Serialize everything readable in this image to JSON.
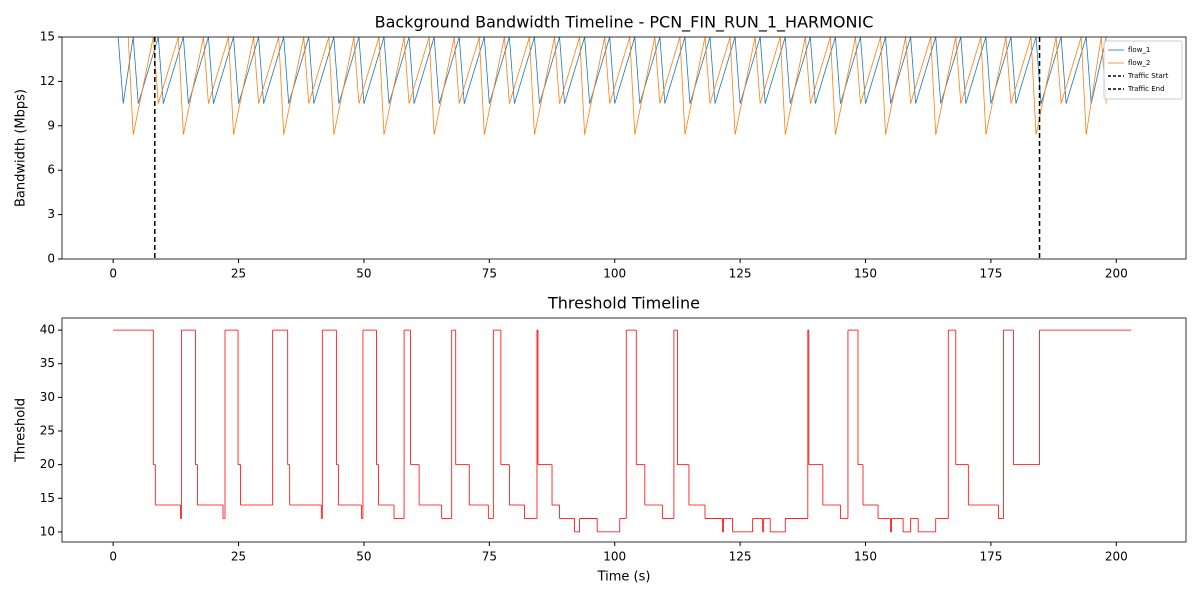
{
  "chart_data": [
    {
      "type": "line",
      "title": "Background Bandwidth Timeline - PCN_FIN_RUN_1_HARMONIC",
      "ylabel": "Bandwidth (Mbps)",
      "xlim": [
        -10.2,
        213.9
      ],
      "ylim": [
        0,
        15
      ],
      "xticks": [
        0,
        25,
        50,
        75,
        100,
        125,
        150,
        175,
        200
      ],
      "yticks": [
        0,
        3,
        6,
        9,
        12,
        15
      ],
      "legend": "upper right",
      "series": [
        {
          "name": "flow_1",
          "color": "#1f77b4",
          "x": [
            1,
            2,
            4,
            5,
            9,
            10,
            14,
            15,
            19,
            20,
            24,
            25,
            29,
            30,
            34,
            35,
            39,
            40,
            44,
            45,
            49,
            50,
            54,
            55,
            59,
            60,
            64,
            65,
            69,
            70,
            74,
            75,
            79,
            80,
            84,
            85,
            89,
            90,
            94,
            95,
            99,
            100,
            104,
            105,
            109,
            110,
            114,
            115,
            119,
            120,
            124,
            125,
            129,
            130,
            134,
            135,
            139,
            140,
            144,
            145,
            149,
            150,
            154,
            155,
            159,
            160,
            164,
            165,
            169,
            170,
            174,
            175,
            179,
            180,
            184,
            185,
            189,
            190,
            194,
            195,
            198
          ],
          "values": [
            15,
            10.5,
            15,
            10.5,
            15,
            10.5,
            15,
            10.5,
            15,
            10.5,
            15,
            10.5,
            15,
            10.5,
            15,
            10.5,
            15,
            10.5,
            15,
            10.5,
            15,
            10.5,
            15,
            10.5,
            15,
            10.5,
            15,
            10.5,
            15,
            10.5,
            15,
            10.5,
            15,
            10.5,
            15,
            10.5,
            15,
            10.5,
            15,
            10.5,
            15,
            10.5,
            15,
            10.5,
            15,
            10.5,
            15,
            10.5,
            15,
            10.5,
            15,
            10.5,
            15,
            10.5,
            15,
            10.5,
            15,
            10.5,
            15,
            10.5,
            15,
            10.5,
            15,
            10.5,
            15,
            10.5,
            15,
            10.5,
            15,
            10.5,
            15,
            10.5,
            15,
            10.5,
            15,
            10.5,
            15,
            10.5,
            15,
            10.5,
            15
          ]
        },
        {
          "name": "flow_2",
          "color": "#ff7f0e",
          "x": [
            3,
            4,
            8,
            9,
            13,
            14,
            18,
            19,
            23,
            24,
            28,
            29,
            33,
            34,
            38,
            39,
            43,
            44,
            48,
            49,
            53,
            54,
            58,
            59,
            63,
            64,
            68,
            69,
            73,
            74,
            78,
            79,
            83,
            84,
            88,
            89,
            93,
            94,
            98,
            99,
            103,
            104,
            108,
            109,
            113,
            114,
            118,
            119,
            123,
            124,
            128,
            129,
            133,
            134,
            138,
            139,
            143,
            144,
            148,
            149,
            153,
            154,
            158,
            159,
            163,
            164,
            168,
            169,
            173,
            174,
            178,
            179,
            183,
            184,
            188,
            189,
            193,
            194,
            197,
            198
          ],
          "values": [
            15,
            8.4,
            15,
            10.5,
            15,
            8.4,
            15,
            10.5,
            15,
            8.4,
            15,
            10.5,
            15,
            8.4,
            15,
            10.5,
            15,
            8.4,
            15,
            10.5,
            15,
            8.4,
            15,
            10.5,
            15,
            8.4,
            15,
            10.5,
            15,
            8.4,
            15,
            10.5,
            15,
            8.4,
            15,
            10.5,
            15,
            8.4,
            15,
            10.5,
            15,
            8.4,
            15,
            10.5,
            15,
            8.4,
            15,
            10.5,
            15,
            8.4,
            15,
            10.5,
            15,
            8.4,
            15,
            10.5,
            15,
            8.4,
            15,
            10.5,
            15,
            8.4,
            15,
            10.5,
            15,
            8.4,
            15,
            10.5,
            15,
            8.4,
            15,
            10.5,
            15,
            8.4,
            15,
            10.5,
            15,
            8.4,
            15,
            10.5
          ]
        }
      ],
      "vlines": [
        {
          "name": "Traffic Start",
          "x": 8.3,
          "color": "#000000"
        },
        {
          "name": "Traffic End",
          "x": 184.7,
          "color": "#000000"
        }
      ]
    },
    {
      "type": "step",
      "title": "Threshold Timeline",
      "xlabel": "Time (s)",
      "ylabel": "Threshold",
      "xlim": [
        -10.2,
        213.9
      ],
      "ylim": [
        8.5,
        41.8
      ],
      "xticks": [
        0,
        25,
        50,
        75,
        100,
        125,
        150,
        175,
        200
      ],
      "yticks": [
        10,
        15,
        20,
        25,
        30,
        35,
        40
      ],
      "series": [
        {
          "color": "#ff0000",
          "x": [
            0,
            8.0,
            8.4,
            13.4,
            13.6,
            16.4,
            16.8,
            21.9,
            22.3,
            24.9,
            25.4,
            31.8,
            34.8,
            35.2,
            41.5,
            41.7,
            44.5,
            44.9,
            49.5,
            49.8,
            52.5,
            52.9,
            56.0,
            58.0,
            59.3,
            61.0,
            65.5,
            67.5,
            68.3,
            71.0,
            74.8,
            75.8,
            77.3,
            79.0,
            82.0,
            84.5,
            84.7,
            87.5,
            89.0,
            92.0,
            93.0,
            96.5,
            101.0,
            102.3,
            104.3,
            106.0,
            109.5,
            111.8,
            112.5,
            114.8,
            118.0,
            121.5,
            121.7,
            123.5,
            127.5,
            129.5,
            129.7,
            131.0,
            134.0,
            138.5,
            138.7,
            141.5,
            145.0,
            146.5,
            148.5,
            149.5,
            152.5,
            155.0,
            155.2,
            157.5,
            159.0,
            160.5,
            164.0,
            166.5,
            168.0,
            170.5,
            176.5,
            177.5,
            179.5,
            184.7,
            203
          ],
          "values": [
            40,
            20,
            14,
            12,
            40,
            20,
            14,
            12,
            40,
            20,
            14,
            40,
            20,
            14,
            12,
            40,
            20,
            14,
            12,
            40,
            20,
            14,
            12,
            40,
            20,
            14,
            12,
            40,
            20,
            14,
            12,
            40,
            20,
            14,
            12,
            40,
            20,
            14,
            12,
            10,
            12,
            10,
            12,
            40,
            20,
            14,
            12,
            40,
            20,
            14,
            12,
            10,
            12,
            10,
            12,
            10,
            12,
            10,
            12,
            40,
            20,
            14,
            12,
            40,
            20,
            14,
            12,
            10,
            12,
            10,
            12,
            10,
            12,
            40,
            20,
            14,
            12,
            40,
            20,
            40,
            40
          ]
        }
      ]
    }
  ]
}
